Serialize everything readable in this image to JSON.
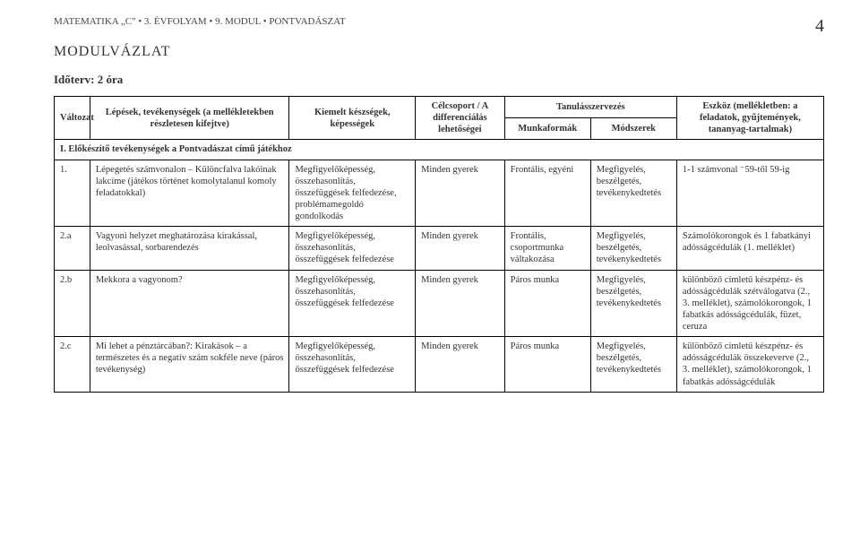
{
  "header": {
    "left": "MATEMATIKA „C\" • 3. ÉVFOLYAM • 9. MODUL • PONTVADÁSZAT",
    "pageNumber": "4"
  },
  "title": "MODULVÁZLAT",
  "subtitle": "Időterv: 2 óra",
  "tableHead": {
    "col1": "Változat",
    "col2": "Lépések, tevékenységek\n(a mellékletekben részletesen kifejtve)",
    "col3": "Kiemelt készségek, képességek",
    "col4": "Célcsoport / A differenciálás lehetőségei",
    "col5top": "Tanulásszervezés",
    "col5a": "Munkaformák",
    "col5b": "Módszerek",
    "col6": "Eszköz\n(mellékletben:\na feladatok,\ngyűjtemények,\ntananyag-tartalmak)"
  },
  "sectionTitle": "I. Előkészítő tevékenységek a Pontvadászat című játékhoz",
  "rows": [
    {
      "n": "1.",
      "step": "Lépegetés számvonalon – Különcfalva lakóinak lakcíme (játékos történet komolytalanul komoly feladatokkal)",
      "skills": "Megfigyelőképesség, összehasonlítás, összefüggések felfedezése, problémamegoldó gondolkodás",
      "target": "Minden gyerek",
      "forms": "Frontális, egyéni",
      "methods": "Megfigyelés, beszélgetés, tevékenykedtetés",
      "tools": "1-1 számvonal ⁻59-től 59-ig"
    },
    {
      "n": "2.a",
      "step": "Vagyoni helyzet meghatározása kirakással, leolvasással, sorbarendezés",
      "skills": "Megfigyelőképesség, összehasonlítás, összefüggések felfedezése",
      "target": "Minden gyerek",
      "forms": "Frontális, csoportmunka váltakozása",
      "methods": "Megfigyelés, beszélgetés, tevékenykedtetés",
      "tools": "Számolókorongok és 1 fabatkányi adósságcédulák (1. melléklet)"
    },
    {
      "n": "2.b",
      "step": "Mekkora a vagyonom?",
      "skills": "Megfigyelőképesség, összehasonlítás, összefüggések felfedezése",
      "target": "Minden gyerek",
      "forms": "Páros munka",
      "methods": "Megfigyelés, beszélgetés, tevékenykedtetés",
      "tools": "különböző címletű készpénz- és adósságcédulák szétválogatva (2., 3. melléklet), számolókorongok, 1 fabatkás adósságcédulák, füzet, ceruza"
    },
    {
      "n": "2.c",
      "step": "Mi lehet a pénztárcában?: Kirakások – a természetes és a negatív szám sokféle neve (páros tevékenység)",
      "skills": "Megfigyelőképesség, összehasonlítás, összefüggések felfedezése",
      "target": "Minden gyerek",
      "forms": "Páros munka",
      "methods": "Megfigyelés, beszélgetés, tevékenykedtetés",
      "tools": "különböző címletű készpénz- és adósságcédulák összekeverve (2., 3. melléklet), számolókorongok, 1 fabatkás adósságcédulák"
    }
  ]
}
